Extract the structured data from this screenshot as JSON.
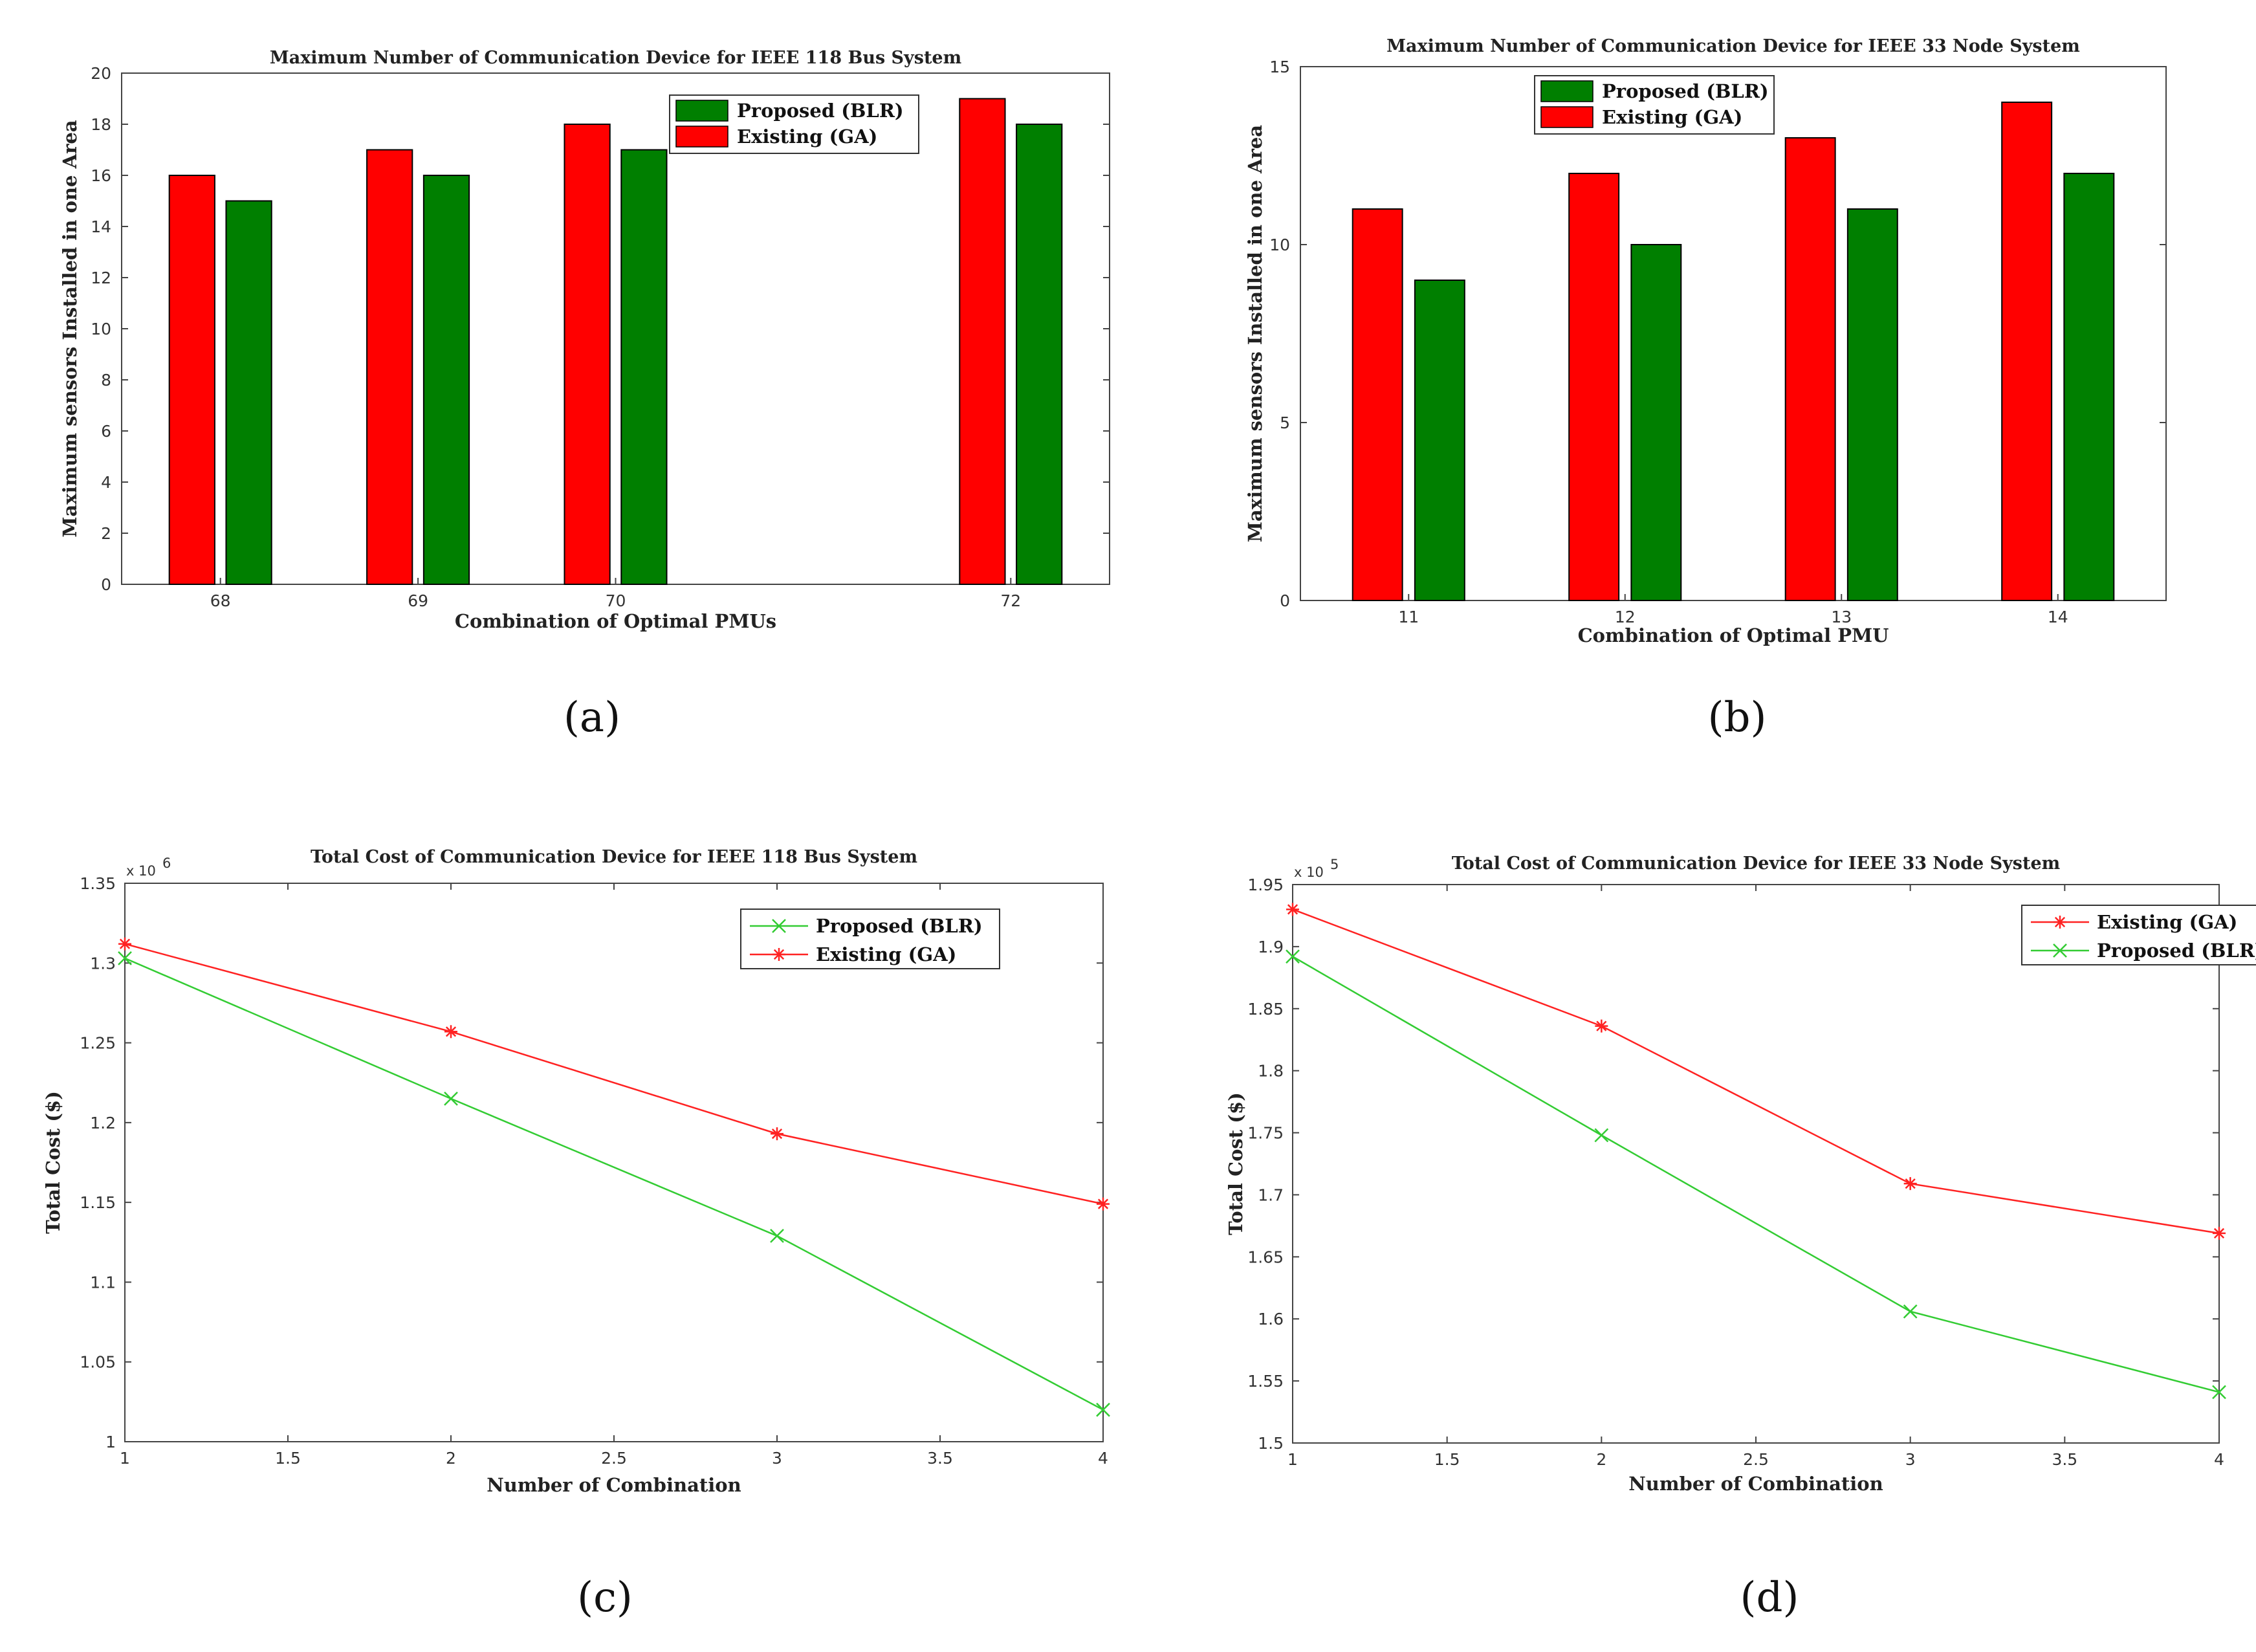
{
  "chart_data": [
    {
      "id": "a",
      "type": "bar",
      "caption": "(a)",
      "title": "Maximum Number of Communication Device for IEEE 118 Bus System",
      "xlabel": "Combination of Optimal PMUs",
      "ylabel": "Maximum sensors Installed in one Area",
      "categories": [
        "68",
        "69",
        "70",
        "72"
      ],
      "x": [
        68,
        69,
        70,
        72
      ],
      "xlim": [
        67.5,
        72.5
      ],
      "ylim": [
        0,
        20
      ],
      "yticks": [
        "0",
        "2",
        "4",
        "6",
        "8",
        "10",
        "12",
        "14",
        "16",
        "18",
        "20"
      ],
      "legend_position": "top-right",
      "legend_order": [
        "Proposed (BLR)",
        "Existing (GA)"
      ],
      "series": [
        {
          "name": "Existing (GA)",
          "color": "#ff0000",
          "values": [
            16,
            17,
            18,
            19
          ]
        },
        {
          "name": "Proposed (BLR)",
          "color": "#007f00",
          "values": [
            15,
            16,
            17,
            18
          ]
        }
      ]
    },
    {
      "id": "b",
      "type": "bar",
      "caption": "(b)",
      "title": "Maximum Number of Communication Device for IEEE 33 Node System",
      "xlabel": "Combination of Optimal PMU",
      "ylabel": "Maximum sensors Installed in one Area",
      "categories": [
        "11",
        "12",
        "13",
        "14"
      ],
      "x": [
        11,
        12,
        13,
        14
      ],
      "xlim": [
        10.5,
        14.5
      ],
      "ylim": [
        0,
        15
      ],
      "yticks": [
        "0",
        "5",
        "10",
        "15"
      ],
      "legend_position": "top-left",
      "legend_order": [
        "Proposed (BLR)",
        "Existing (GA)"
      ],
      "series": [
        {
          "name": "Existing (GA)",
          "color": "#ff0000",
          "values": [
            11,
            12,
            13,
            14
          ]
        },
        {
          "name": "Proposed (BLR)",
          "color": "#007f00",
          "values": [
            9,
            10,
            11,
            12
          ]
        }
      ]
    },
    {
      "id": "c",
      "type": "line",
      "caption": "(c)",
      "title": "Total Cost of Communication Device for IEEE 118 Bus System",
      "xlabel": "Number of Combination",
      "ylabel": "Total Cost ($)",
      "multiplier": "x 10",
      "multiplier_exp": "6",
      "x": [
        1,
        2,
        3,
        4
      ],
      "xlim": [
        1,
        4
      ],
      "ylim": [
        1.0,
        1.35
      ],
      "xticks": [
        "1",
        "1.5",
        "2",
        "2.5",
        "3",
        "3.5",
        "4"
      ],
      "yticks": [
        "1",
        "1.05",
        "1.1",
        "1.15",
        "1.2",
        "1.25",
        "1.3",
        "1.35"
      ],
      "legend_position": "top-right",
      "legend_order": [
        "Proposed (BLR)",
        "Existing (GA)"
      ],
      "series": [
        {
          "name": "Proposed (BLR)",
          "color": "#33cc33",
          "marker": "x",
          "values": [
            1.303,
            1.215,
            1.129,
            1.02
          ]
        },
        {
          "name": "Existing (GA)",
          "color": "#ff2222",
          "marker": "*",
          "values": [
            1.312,
            1.257,
            1.193,
            1.149
          ]
        }
      ]
    },
    {
      "id": "d",
      "type": "line",
      "caption": "(d)",
      "title": "Total Cost of Communication Device for IEEE 33 Node System",
      "xlabel": "Number of Combination",
      "ylabel": "Total Cost ($)",
      "multiplier": "x 10",
      "multiplier_exp": "5",
      "x": [
        1,
        2,
        3,
        4
      ],
      "xlim": [
        1,
        4
      ],
      "ylim": [
        1.5,
        1.95
      ],
      "xticks": [
        "1",
        "1.5",
        "2",
        "2.5",
        "3",
        "3.5",
        "4"
      ],
      "yticks": [
        "1.5",
        "1.55",
        "1.6",
        "1.65",
        "1.7",
        "1.75",
        "1.8",
        "1.85",
        "1.9",
        "1.95"
      ],
      "legend_position": "top-right",
      "legend_order": [
        "Existing (GA)",
        "Proposed (BLR)"
      ],
      "series": [
        {
          "name": "Existing (GA)",
          "color": "#ff2222",
          "marker": "*",
          "values": [
            1.93,
            1.836,
            1.709,
            1.669
          ]
        },
        {
          "name": "Proposed (BLR)",
          "color": "#33cc33",
          "marker": "x",
          "values": [
            1.892,
            1.748,
            1.606,
            1.541
          ]
        }
      ]
    }
  ]
}
